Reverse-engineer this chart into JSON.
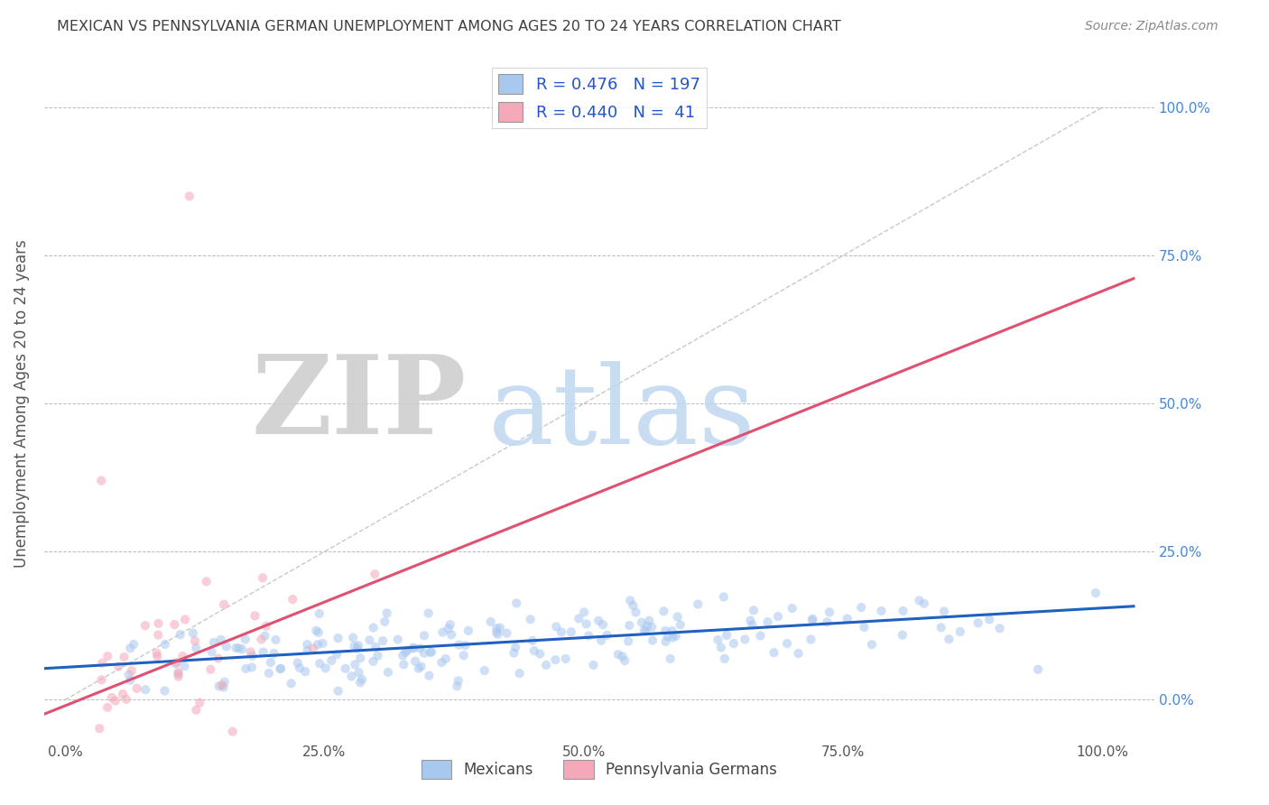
{
  "title": "MEXICAN VS PENNSYLVANIA GERMAN UNEMPLOYMENT AMONG AGES 20 TO 24 YEARS CORRELATION CHART",
  "source": "Source: ZipAtlas.com",
  "ylabel": "Unemployment Among Ages 20 to 24 years",
  "x_tick_labels": [
    "0.0%",
    "25.0%",
    "50.0%",
    "75.0%",
    "100.0%"
  ],
  "x_tick_vals": [
    0.0,
    0.25,
    0.5,
    0.75,
    1.0
  ],
  "y_tick_labels_right": [
    "100.0%",
    "75.0%",
    "50.0%",
    "25.0%",
    "0.0%"
  ],
  "y_tick_vals": [
    0.0,
    0.25,
    0.5,
    0.75,
    1.0
  ],
  "xlim": [
    -0.02,
    1.05
  ],
  "ylim": [
    -0.07,
    1.07
  ],
  "mexican_R": 0.476,
  "mexican_N": 197,
  "pagerman_R": 0.44,
  "pagerman_N": 41,
  "mexican_color": "#a8c8f0",
  "pagerman_color": "#f4a8b8",
  "mexican_line_color": "#2060c0",
  "pagerman_line_color": "#e05070",
  "legend_label_mexican": "Mexicans",
  "legend_label_pagerman": "Pennsylvania Germans",
  "watermark_zip": "ZIP",
  "watermark_atlas": "atlas",
  "background_color": "#ffffff",
  "grid_color": "#bbbbbb",
  "title_color": "#404040",
  "source_color": "#888888",
  "seed": 42,
  "mexican_slope": 0.1,
  "mexican_intercept": 0.055,
  "pagerman_slope": 0.7,
  "pagerman_intercept": -0.01,
  "scatter_alpha": 0.55,
  "scatter_size": 55
}
